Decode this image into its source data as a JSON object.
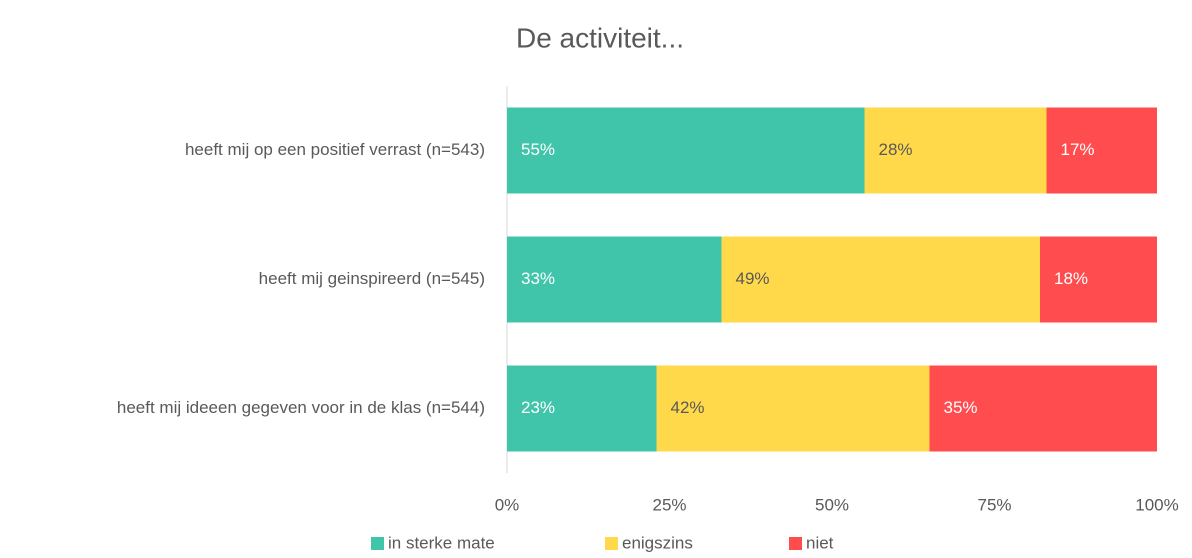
{
  "chart_data": {
    "type": "stacked_bar_horizontal",
    "title": "De activiteit...",
    "categories": [
      "heeft mij op een positief verrast (n=543)",
      "heeft mij geinspireerd (n=545)",
      "heeft mij ideeen gegeven voor in de klas (n=544)"
    ],
    "series": [
      {
        "name": "in sterke mate",
        "color": "#40c4aa",
        "values": [
          55,
          33,
          23
        ],
        "value_labels": [
          "55%",
          "33%",
          "23%"
        ]
      },
      {
        "name": "enigszins",
        "color": "#ffd94a",
        "values": [
          28,
          49,
          42
        ],
        "value_labels": [
          "28%",
          "49%",
          "42%"
        ]
      },
      {
        "name": "niet",
        "color": "#ff4d4f",
        "values": [
          17,
          18,
          35
        ],
        "value_labels": [
          "17%",
          "18%",
          "35%"
        ]
      }
    ],
    "xlim": [
      0,
      100
    ],
    "xticks": [
      {
        "value": 0,
        "label": "0%"
      },
      {
        "value": 25,
        "label": "25%"
      },
      {
        "value": 50,
        "label": "50%"
      },
      {
        "value": 75,
        "label": "75%"
      },
      {
        "value": 100,
        "label": "100%"
      }
    ],
    "legend": "bottom"
  }
}
